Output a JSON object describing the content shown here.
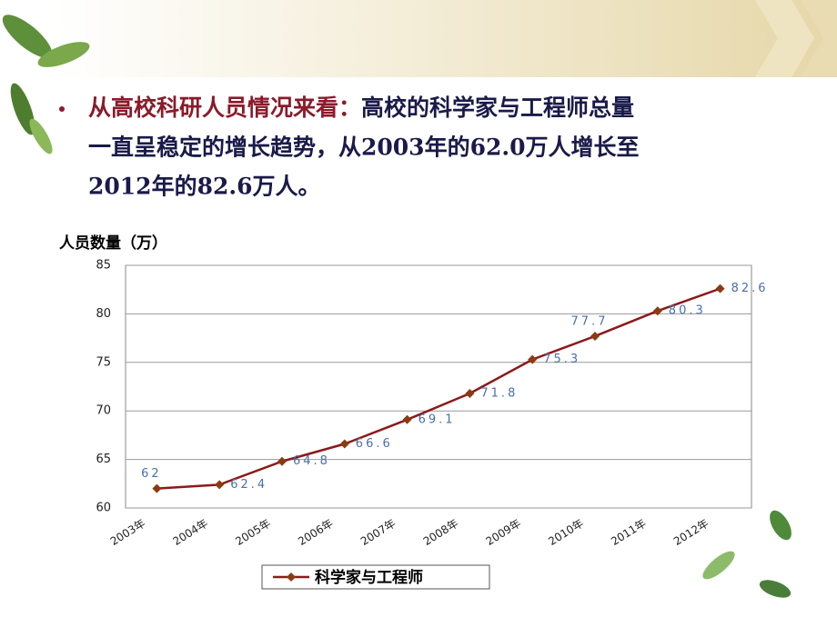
{
  "slide": {
    "lead": "从高校科研人员情况来看：",
    "body": [
      "高校的科学家与工程师总量",
      "一直呈稳定的增长趋势，从2003年的62.0万人增长至",
      "2012年的82.6万人。"
    ]
  },
  "chart_data": {
    "type": "line",
    "ylabel": "人员数量（万）",
    "categories": [
      "2003年",
      "2004年",
      "2005年",
      "2006年",
      "2007年",
      "2008年",
      "2009年",
      "2010年",
      "2011年",
      "2012年"
    ],
    "series": [
      {
        "name": "科学家与工程师",
        "color": "#8b1a1a",
        "marker_color": "#8b3a12",
        "values": [
          62,
          62.4,
          64.8,
          66.6,
          69.1,
          71.8,
          75.3,
          77.7,
          80.3,
          82.6
        ]
      }
    ],
    "ylim": [
      60,
      85
    ],
    "yticks": [
      60,
      65,
      70,
      75,
      80,
      85
    ],
    "grid": true,
    "legend": "bottom"
  }
}
